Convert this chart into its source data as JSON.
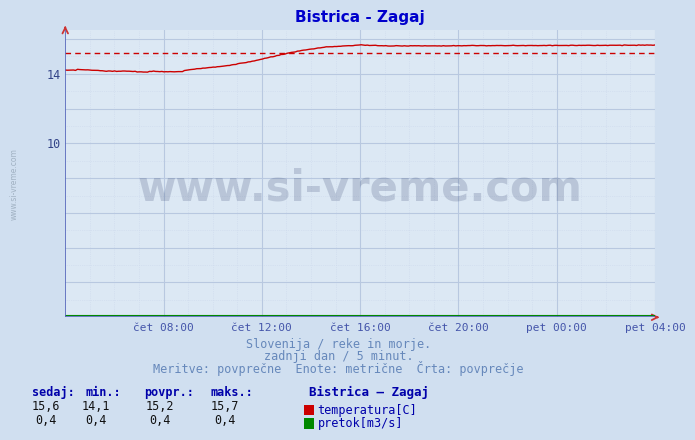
{
  "title": "Bistrica - Zagaj",
  "title_color": "#0000cc",
  "bg_color": "#d0dff0",
  "plot_bg_color": "#dce8f4",
  "grid_major_color": "#b8c8e0",
  "grid_minor_color": "#ccd8ec",
  "x_label_color": "#4455aa",
  "y_label_color": "#334488",
  "subtitle_lines": [
    "Slovenija / reke in morje.",
    "zadnji dan / 5 minut.",
    "Meritve: povprečne  Enote: metrične  Črta: povprečje"
  ],
  "subtitle_color": "#6688bb",
  "xtick_labels": [
    "čet 08:00",
    "čet 12:00",
    "čet 16:00",
    "čet 20:00",
    "pet 00:00",
    "pet 04:00"
  ],
  "xtick_positions_norm": [
    0.1667,
    0.3333,
    0.5,
    0.6667,
    0.8333,
    1.0
  ],
  "y_min": 0,
  "y_max": 16.5,
  "x_min": 0.0,
  "x_max": 1.0,
  "avg_line_value": 15.2,
  "watermark_text": "www.si-vreme.com",
  "watermark_color": "#1a2a5a",
  "watermark_alpha": 0.18,
  "temp_line_color": "#cc0000",
  "avg_line_color": "#cc0000",
  "flow_line_color": "#008800",
  "axis_color": "#8899cc",
  "legend_title": "Bistrica – Zagaj",
  "legend_label1": "temperatura[C]",
  "legend_label2": "pretok[m3/s]",
  "legend_color1": "#cc0000",
  "legend_color2": "#008800",
  "table_headers": [
    "sedaj:",
    "min.:",
    "povpr.:",
    "maks.:"
  ],
  "table_values_temp": [
    "15,6",
    "14,1",
    "15,2",
    "15,7"
  ],
  "table_values_flow": [
    "0,4",
    "0,4",
    "0,4",
    "0,4"
  ],
  "table_header_color": "#0000aa",
  "table_value_color": "#111111",
  "sidebar_text": "www.si-vreme.com",
  "sidebar_color": "#99aabb"
}
